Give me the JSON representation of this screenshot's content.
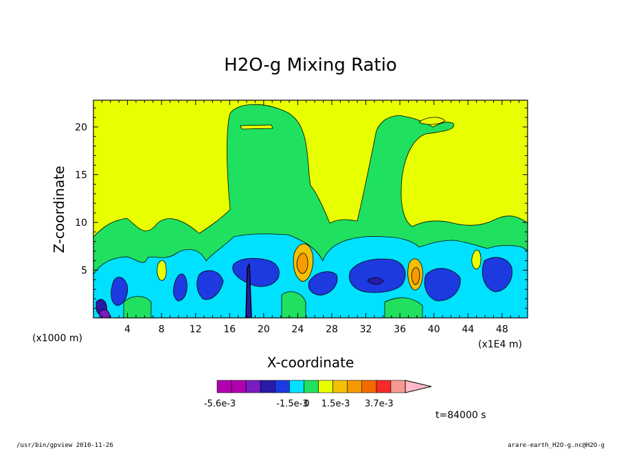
{
  "chart_data": {
    "type": "heatmap",
    "title": "H2O-g Mixing Ratio",
    "xlabel": "X-coordinate",
    "ylabel": "Z-coordinate",
    "x_unit": "(x1E4 m)",
    "y_unit": "(x1000 m)",
    "xlim": [
      0,
      51
    ],
    "ylim": [
      0,
      22.8
    ],
    "x_ticks": [
      4,
      8,
      12,
      16,
      20,
      24,
      28,
      32,
      36,
      40,
      44,
      48
    ],
    "y_ticks": [
      5,
      10,
      15,
      20
    ],
    "colorbar": {
      "colors": [
        "#b000b0",
        "#b000b0",
        "#7a1cc0",
        "#2a1aa8",
        "#1c3ae0",
        "#00e0ff",
        "#20e060",
        "#e8ff00",
        "#f5c000",
        "#f59a00",
        "#f56a00",
        "#f52a2a",
        "#f59a90",
        "#ffb8c8"
      ],
      "labels": [
        "-5.6e-3",
        "-1.5e-3",
        "0",
        "1.5e-3",
        "3.7e-3"
      ],
      "label_segment": [
        0,
        5,
        6,
        8,
        11
      ]
    },
    "time_label": "t=84000 s"
  },
  "footer": {
    "left": "/usr/bin/gpview   2010-11-26",
    "right": "arare-earth_H2O-g.nc@H2O-g"
  }
}
